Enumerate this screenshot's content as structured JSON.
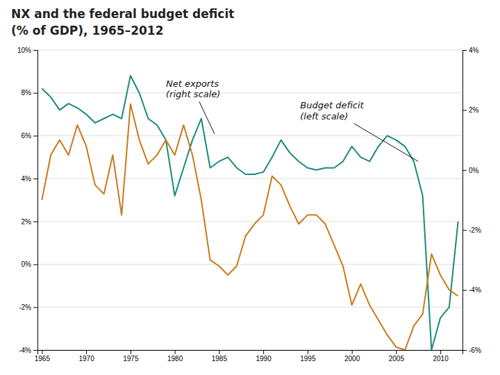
{
  "chart_data": {
    "type": "line",
    "title": "NX and the federal budget deficit",
    "subtitle": "(% of GDP), 1965–2012",
    "x": [
      1965,
      1966,
      1967,
      1968,
      1969,
      1970,
      1971,
      1972,
      1973,
      1974,
      1975,
      1976,
      1977,
      1978,
      1979,
      1980,
      1981,
      1982,
      1983,
      1984,
      1985,
      1986,
      1987,
      1988,
      1989,
      1990,
      1991,
      1992,
      1993,
      1994,
      1995,
      1996,
      1997,
      1998,
      1999,
      2000,
      2001,
      2002,
      2003,
      2004,
      2005,
      2006,
      2007,
      2008,
      2009,
      2010,
      2011,
      2012
    ],
    "series": [
      {
        "color": "#1A8A7A",
        "axis": "y",
        "values": [
          8.2,
          7.8,
          7.2,
          7.5,
          7.3,
          7.0,
          6.6,
          6.8,
          7.0,
          6.8,
          8.8,
          8.0,
          6.8,
          6.5,
          5.8,
          3.2,
          4.5,
          5.8,
          6.8,
          4.5,
          4.8,
          5.0,
          4.5,
          4.2,
          4.2,
          4.3,
          5.0,
          5.8,
          5.2,
          4.8,
          4.5,
          4.4,
          4.5,
          4.5,
          4.8,
          5.5,
          5.0,
          4.8,
          5.5,
          6.0,
          5.8,
          5.5,
          4.8,
          3.2,
          -4.0,
          -2.5,
          -2.0,
          2.0
        ]
      },
      {
        "color": "#C87A18",
        "axis": "y2",
        "values": [
          -1.0,
          0.5,
          1.0,
          0.5,
          1.5,
          0.8,
          -0.5,
          -0.8,
          0.5,
          -1.5,
          2.2,
          1.0,
          0.2,
          0.5,
          1.0,
          0.5,
          1.5,
          0.5,
          -1.0,
          -3.0,
          -3.2,
          -3.5,
          -3.2,
          -2.2,
          -1.8,
          -1.5,
          -0.2,
          -0.5,
          -1.2,
          -1.8,
          -1.5,
          -1.5,
          -1.8,
          -2.5,
          -3.2,
          -4.5,
          -3.8,
          -4.5,
          -5.0,
          -5.5,
          -5.9,
          -6.0,
          -5.2,
          -4.8,
          -2.8,
          -3.5,
          -4.0,
          -4.2
        ]
      }
    ],
    "xlim": [
      1964.5,
      2012.5
    ],
    "xticks": [
      1965,
      1970,
      1975,
      1980,
      1985,
      1990,
      1995,
      2000,
      2005,
      2010
    ],
    "ylim": [
      -4,
      10
    ],
    "yticks": [
      {
        "value": -4,
        "label": "-4%"
      },
      {
        "value": -2,
        "label": "-2%"
      },
      {
        "value": 0,
        "label": "0%"
      },
      {
        "value": 2,
        "label": "2%"
      },
      {
        "value": 4,
        "label": "4%"
      },
      {
        "value": 6,
        "label": "6%"
      },
      {
        "value": 8,
        "label": "8%"
      },
      {
        "value": 10,
        "label": "10%"
      }
    ],
    "y2lim": [
      -6,
      4
    ],
    "y2ticks": [
      {
        "value": -6,
        "label": "-6%"
      },
      {
        "value": -4,
        "label": "-4%"
      },
      {
        "value": -2,
        "label": "-2%"
      },
      {
        "value": 0,
        "label": "0%"
      },
      {
        "value": 2,
        "label": "2%"
      },
      {
        "value": 4,
        "label": "4%"
      }
    ],
    "grid": true,
    "annotations": [
      {
        "text": "Budget deficit\n(left scale)",
        "x": 2007.5,
        "y": 4.8
      },
      {
        "text": "Net exports\n(right scale)",
        "x": 1984.5,
        "y": 1.2,
        "axis": "y2"
      }
    ]
  }
}
